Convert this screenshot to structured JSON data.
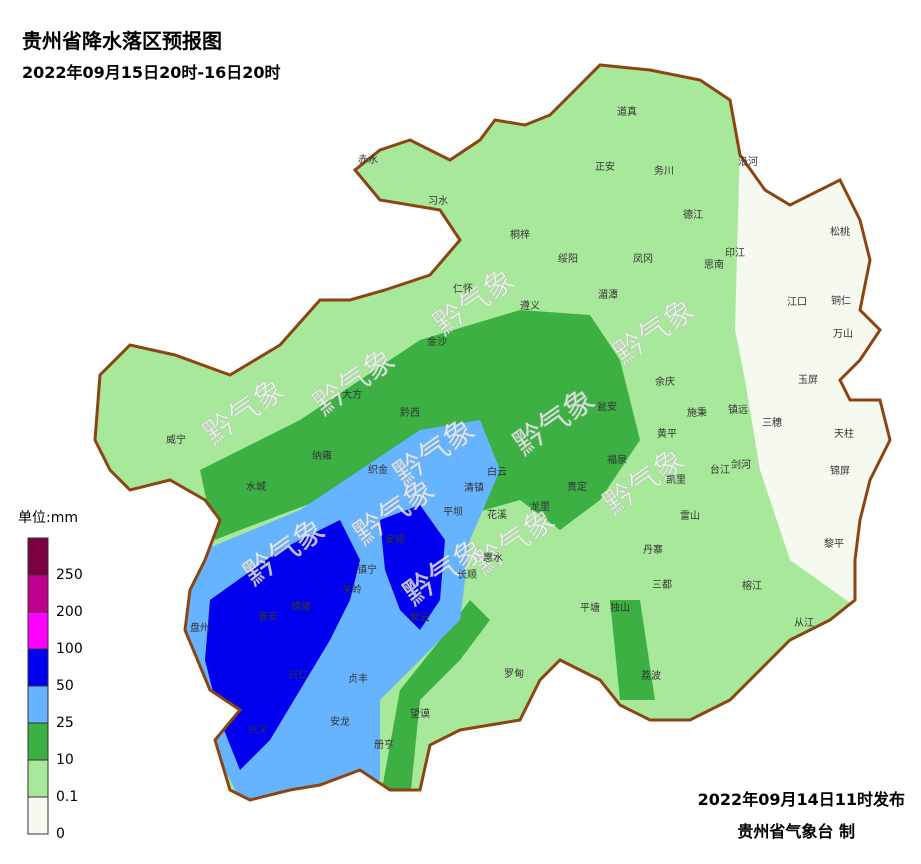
{
  "header": {
    "title": "贵州省降水落区预报图",
    "subtitle": "2022年09月15日20时-16日20时"
  },
  "legend": {
    "unit": "单位:mm",
    "ticks": [
      0,
      0.1,
      10,
      25,
      50,
      100,
      200,
      250
    ],
    "colors": [
      "#f5f9ef",
      "#a8e89a",
      "#3cb043",
      "#66b3ff",
      "#0000ee",
      "#ff00ff",
      "#c0008f",
      "#7a0040"
    ]
  },
  "counties": [
    "道真",
    "正安",
    "务川",
    "沿河",
    "赤水",
    "习水",
    "桐梓",
    "绥阳",
    "凤冈",
    "德江",
    "印江",
    "思南",
    "松桃",
    "仁怀",
    "湄潭",
    "遵义",
    "江口",
    "铜仁",
    "万山",
    "金沙",
    "余庆",
    "玉屏",
    "施秉",
    "镇远",
    "三穗",
    "天柱",
    "黔西",
    "大方",
    "威宁",
    "纳雍",
    "织金",
    "瓮安",
    "黄平",
    "台江",
    "剑河",
    "锦屏",
    "福泉",
    "凯里",
    "贵定",
    "龙里",
    "水城",
    "清镇",
    "白云",
    "花溪",
    "平坝",
    "雷山",
    "黎平",
    "丹寨",
    "安顺",
    "惠水",
    "长顺",
    "镇宁",
    "关岭",
    "紫云",
    "普安",
    "晴隆",
    "盘州",
    "三都",
    "榕江",
    "从江",
    "平塘",
    "独山",
    "兴仁",
    "贞丰",
    "罗甸",
    "荔波",
    "兴义",
    "安龙",
    "望谟",
    "册亨"
  ],
  "watermark": "黔气象",
  "footer": {
    "issued": "2022年09月14日11时发布",
    "agency": "贵州省气象台 制"
  }
}
